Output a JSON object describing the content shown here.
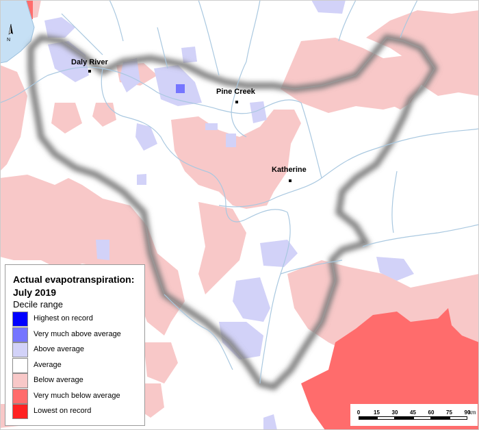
{
  "map": {
    "places": [
      {
        "name": "Daly River"
      },
      {
        "name": "Pine Creek"
      },
      {
        "name": "Katherine"
      }
    ],
    "north_label": "N"
  },
  "legend": {
    "title": "Actual evapotranspiration: July 2019",
    "subtitle": "Decile range",
    "items": [
      {
        "label": "Highest on record",
        "color": "#0000ff"
      },
      {
        "label": "Very much above average",
        "color": "#7575ff"
      },
      {
        "label": "Above average",
        "color": "#d2d2f8"
      },
      {
        "label": "Average",
        "color": "#ffffff"
      },
      {
        "label": "Below average",
        "color": "#f8c8c8"
      },
      {
        "label": "Very much below average",
        "color": "#ff6c6c"
      },
      {
        "label": "Lowest on record",
        "color": "#ff2222"
      }
    ]
  },
  "scalebar": {
    "ticks": [
      "0",
      "15",
      "30",
      "45",
      "60",
      "75",
      "90"
    ],
    "unit": "km"
  },
  "colors": {
    "water": "#c6e0f5",
    "river": "#a9c8e0",
    "boundary_shadow": "#7a7a7a"
  }
}
